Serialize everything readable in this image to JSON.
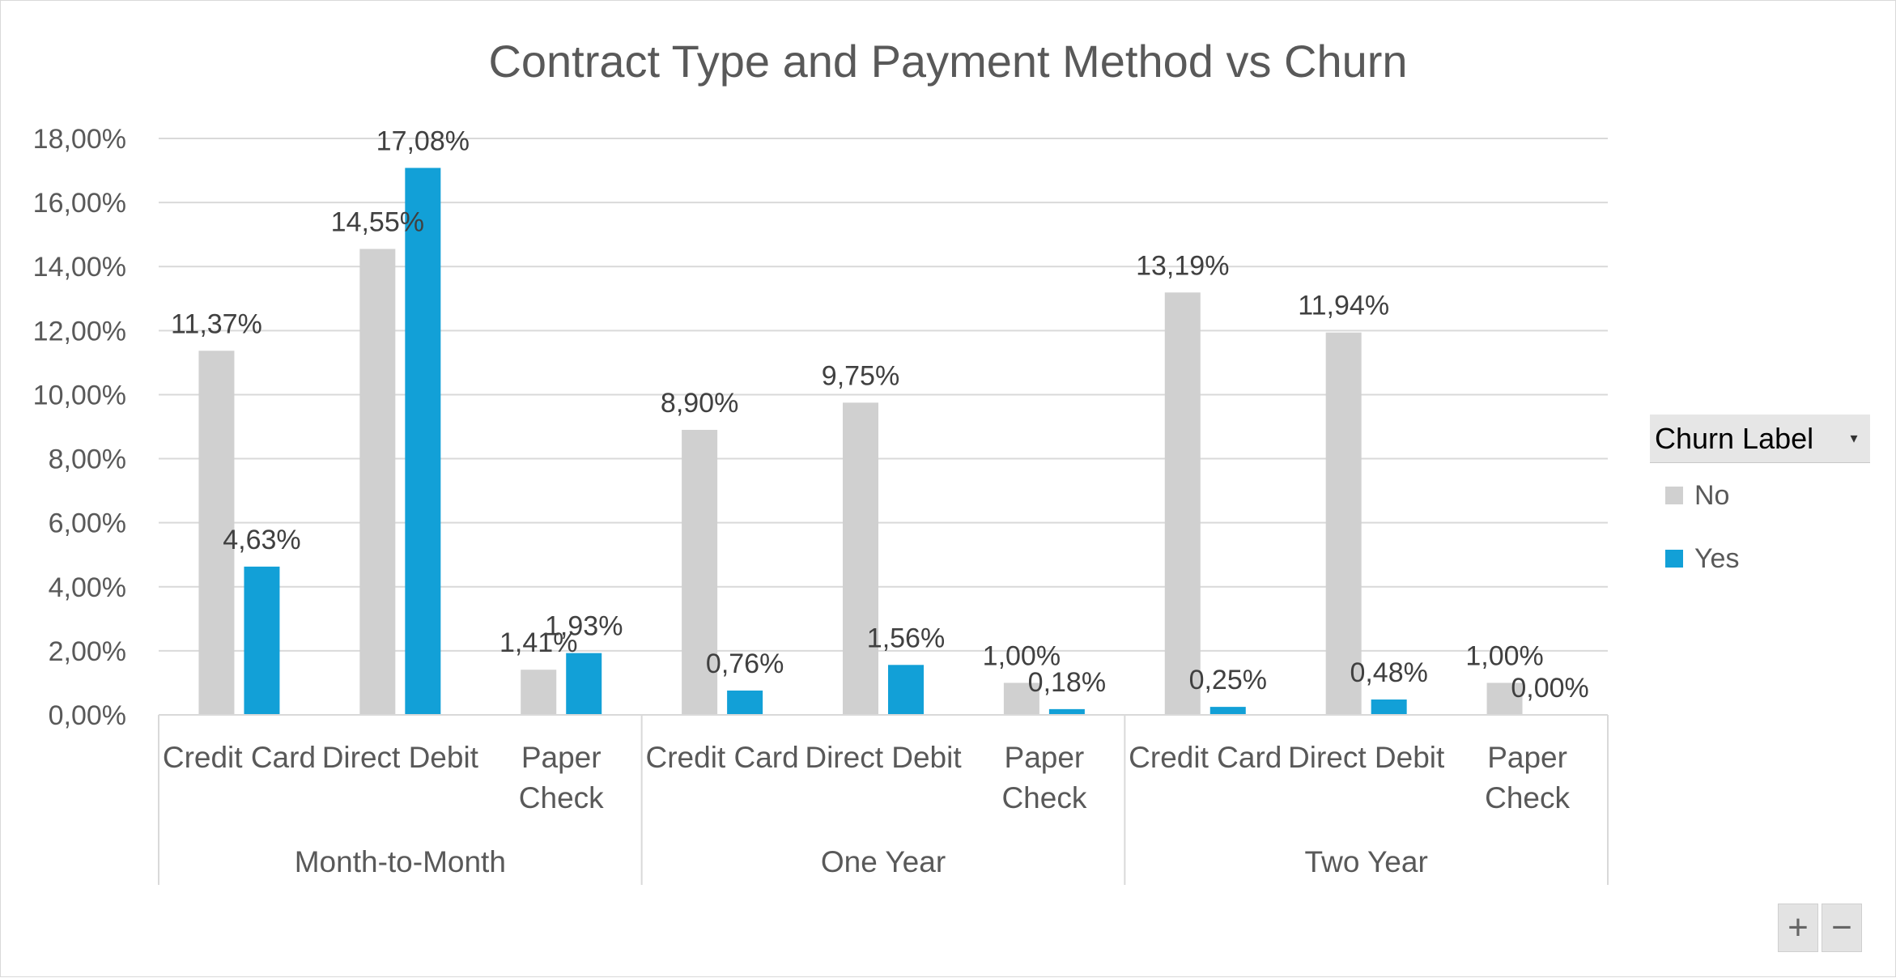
{
  "chart_data": {
    "type": "bar",
    "title": "Contract Type and Payment Method vs Churn",
    "xlabel": "",
    "ylabel": "",
    "ylim": [
      0,
      18
    ],
    "y_ticks": [
      "0,00%",
      "2,00%",
      "4,00%",
      "6,00%",
      "8,00%",
      "10,00%",
      "12,00%",
      "14,00%",
      "16,00%",
      "18,00%"
    ],
    "grid": true,
    "legend_position": "right",
    "groups": [
      {
        "name": "Month-to-Month",
        "categories": [
          {
            "lines": [
              "Credit Card"
            ]
          },
          {
            "lines": [
              "Direct Debit"
            ]
          },
          {
            "lines": [
              "Paper",
              "Check"
            ]
          }
        ]
      },
      {
        "name": "One Year",
        "categories": [
          {
            "lines": [
              "Credit Card"
            ]
          },
          {
            "lines": [
              "Direct Debit"
            ]
          },
          {
            "lines": [
              "Paper",
              "Check"
            ]
          }
        ]
      },
      {
        "name": "Two Year",
        "categories": [
          {
            "lines": [
              "Credit Card"
            ]
          },
          {
            "lines": [
              "Direct Debit"
            ]
          },
          {
            "lines": [
              "Paper",
              "Check"
            ]
          }
        ]
      }
    ],
    "series": [
      {
        "name": "No",
        "color": "#d0d0d0",
        "values": [
          11.37,
          14.55,
          1.41,
          8.9,
          9.75,
          1.0,
          13.19,
          11.94,
          1.0
        ],
        "labels": [
          "11,37%",
          "14,55%",
          "1,41%",
          "8,90%",
          "9,75%",
          "1,00%",
          "13,19%",
          "11,94%",
          "1,00%"
        ]
      },
      {
        "name": "Yes",
        "color": "#12a0d7",
        "values": [
          4.63,
          17.08,
          1.93,
          0.76,
          1.56,
          0.18,
          0.25,
          0.48,
          0.0
        ],
        "labels": [
          "4,63%",
          "17,08%",
          "1,93%",
          "0,76%",
          "1,56%",
          "0,18%",
          "0,25%",
          "0,48%",
          "0,00%"
        ]
      }
    ]
  },
  "legend": {
    "title": "Churn Label",
    "dropdown_icon": "chevron-down-icon",
    "items": [
      {
        "label": "No",
        "color": "#d0d0d0"
      },
      {
        "label": "Yes",
        "color": "#12a0d7"
      }
    ]
  },
  "zoom": {
    "plus": "+",
    "minus": "−"
  }
}
